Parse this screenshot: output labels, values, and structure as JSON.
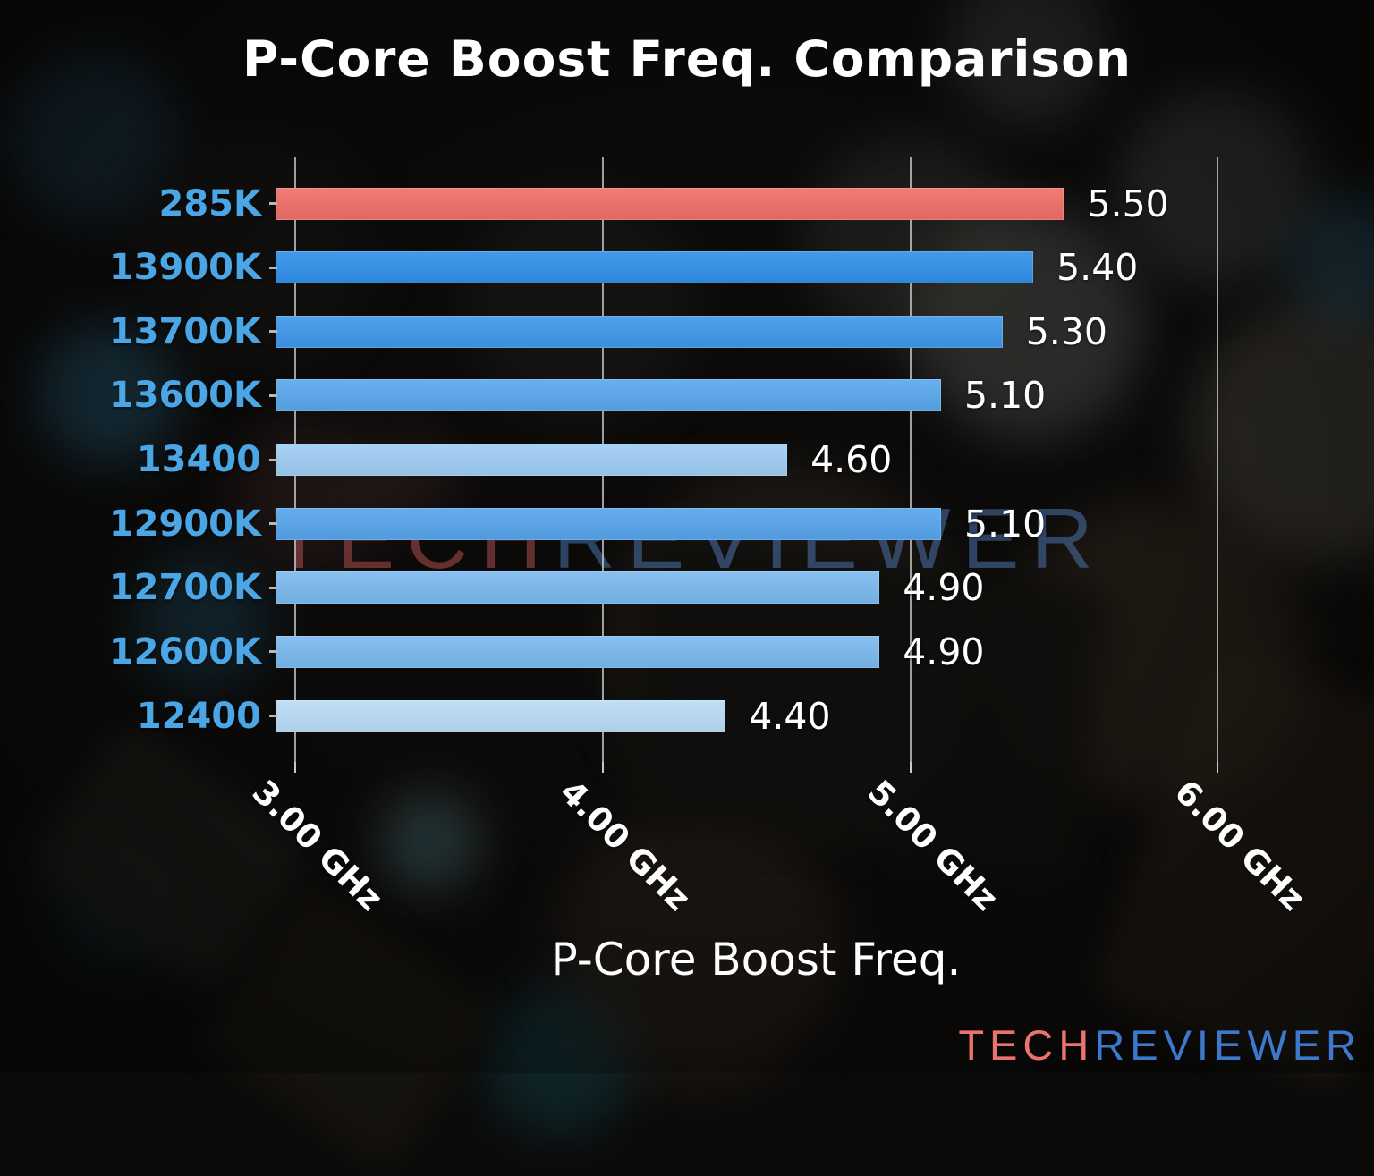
{
  "title": "P-Core Boost Freq. Comparison",
  "watermark": {
    "part1": "TECH",
    "part2": "REVIEWER"
  },
  "logo": {
    "part1": "TECH",
    "part2": "REVIEWER"
  },
  "colors": {
    "category_label": "#4ba6e6",
    "highlight_bar": "#ef6e66",
    "gridline": "#d2d2d2",
    "watermark_red": "rgba(173,78,78,0.55)",
    "watermark_blue": "rgba(82,124,188,0.50)",
    "logo_red": "#ea7370",
    "logo_blue": "#3c79cc",
    "text": "#ffffff"
  },
  "chart_data": {
    "type": "bar",
    "orientation": "horizontal",
    "title": "P-Core Boost Freq. Comparison",
    "xlabel": "P-Core Boost Freq.",
    "ylabel": "",
    "categories": [
      "285K",
      "13900K",
      "13700K",
      "13600K",
      "13400",
      "12900K",
      "12700K",
      "12600K",
      "12400"
    ],
    "values": [
      5.5,
      5.4,
      5.3,
      5.1,
      4.6,
      5.1,
      4.9,
      4.9,
      4.4
    ],
    "value_labels": [
      "5.50",
      "5.40",
      "5.30",
      "5.10",
      "4.60",
      "5.10",
      "4.90",
      "4.90",
      "4.40"
    ],
    "bar_colors": [
      "#ef6e66",
      "#2f8fe9",
      "#3e97ea",
      "#58a7ec",
      "#9ecdf3",
      "#55a4eb",
      "#7ab9ef",
      "#7ab9ef",
      "#b9dcf6"
    ],
    "x_ticks": [
      {
        "value": 3.0,
        "label": "3.00 GHz"
      },
      {
        "value": 4.0,
        "label": "4.00 GHz"
      },
      {
        "value": 5.0,
        "label": "5.00 GHz"
      },
      {
        "value": 6.0,
        "label": "6.00 GHz"
      }
    ],
    "xlim": [
      2.936,
      6.06
    ],
    "grid": true,
    "legend": false,
    "units": "GHz"
  }
}
